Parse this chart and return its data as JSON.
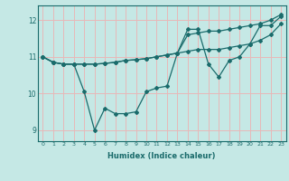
{
  "xlabel": "Humidex (Indice chaleur)",
  "xlim": [
    -0.5,
    23.5
  ],
  "ylim": [
    8.7,
    12.4
  ],
  "yticks": [
    9,
    10,
    11,
    12
  ],
  "xticks": [
    0,
    1,
    2,
    3,
    4,
    5,
    6,
    7,
    8,
    9,
    10,
    11,
    12,
    13,
    14,
    15,
    16,
    17,
    18,
    19,
    20,
    21,
    22,
    23
  ],
  "bg_color": "#c5e8e5",
  "grid_color": "#e8b8b8",
  "line_color": "#1a6b6b",
  "series": [
    [
      11.0,
      10.85,
      10.8,
      10.8,
      10.05,
      9.0,
      9.6,
      9.45,
      9.45,
      9.5,
      10.05,
      10.15,
      10.2,
      11.1,
      11.75,
      11.75,
      10.8,
      10.45,
      10.9,
      11.0,
      11.35,
      11.85,
      11.85,
      12.1
    ],
    [
      11.0,
      10.85,
      10.8,
      10.8,
      10.8,
      10.8,
      10.82,
      10.85,
      10.9,
      10.92,
      10.95,
      11.0,
      11.05,
      11.1,
      11.15,
      11.2,
      11.2,
      11.2,
      11.25,
      11.3,
      11.35,
      11.45,
      11.6,
      11.9
    ],
    [
      11.0,
      10.85,
      10.8,
      10.8,
      10.8,
      10.8,
      10.82,
      10.85,
      10.9,
      10.92,
      10.95,
      11.0,
      11.05,
      11.1,
      11.6,
      11.65,
      11.7,
      11.7,
      11.75,
      11.8,
      11.85,
      11.9,
      12.0,
      12.15
    ]
  ]
}
